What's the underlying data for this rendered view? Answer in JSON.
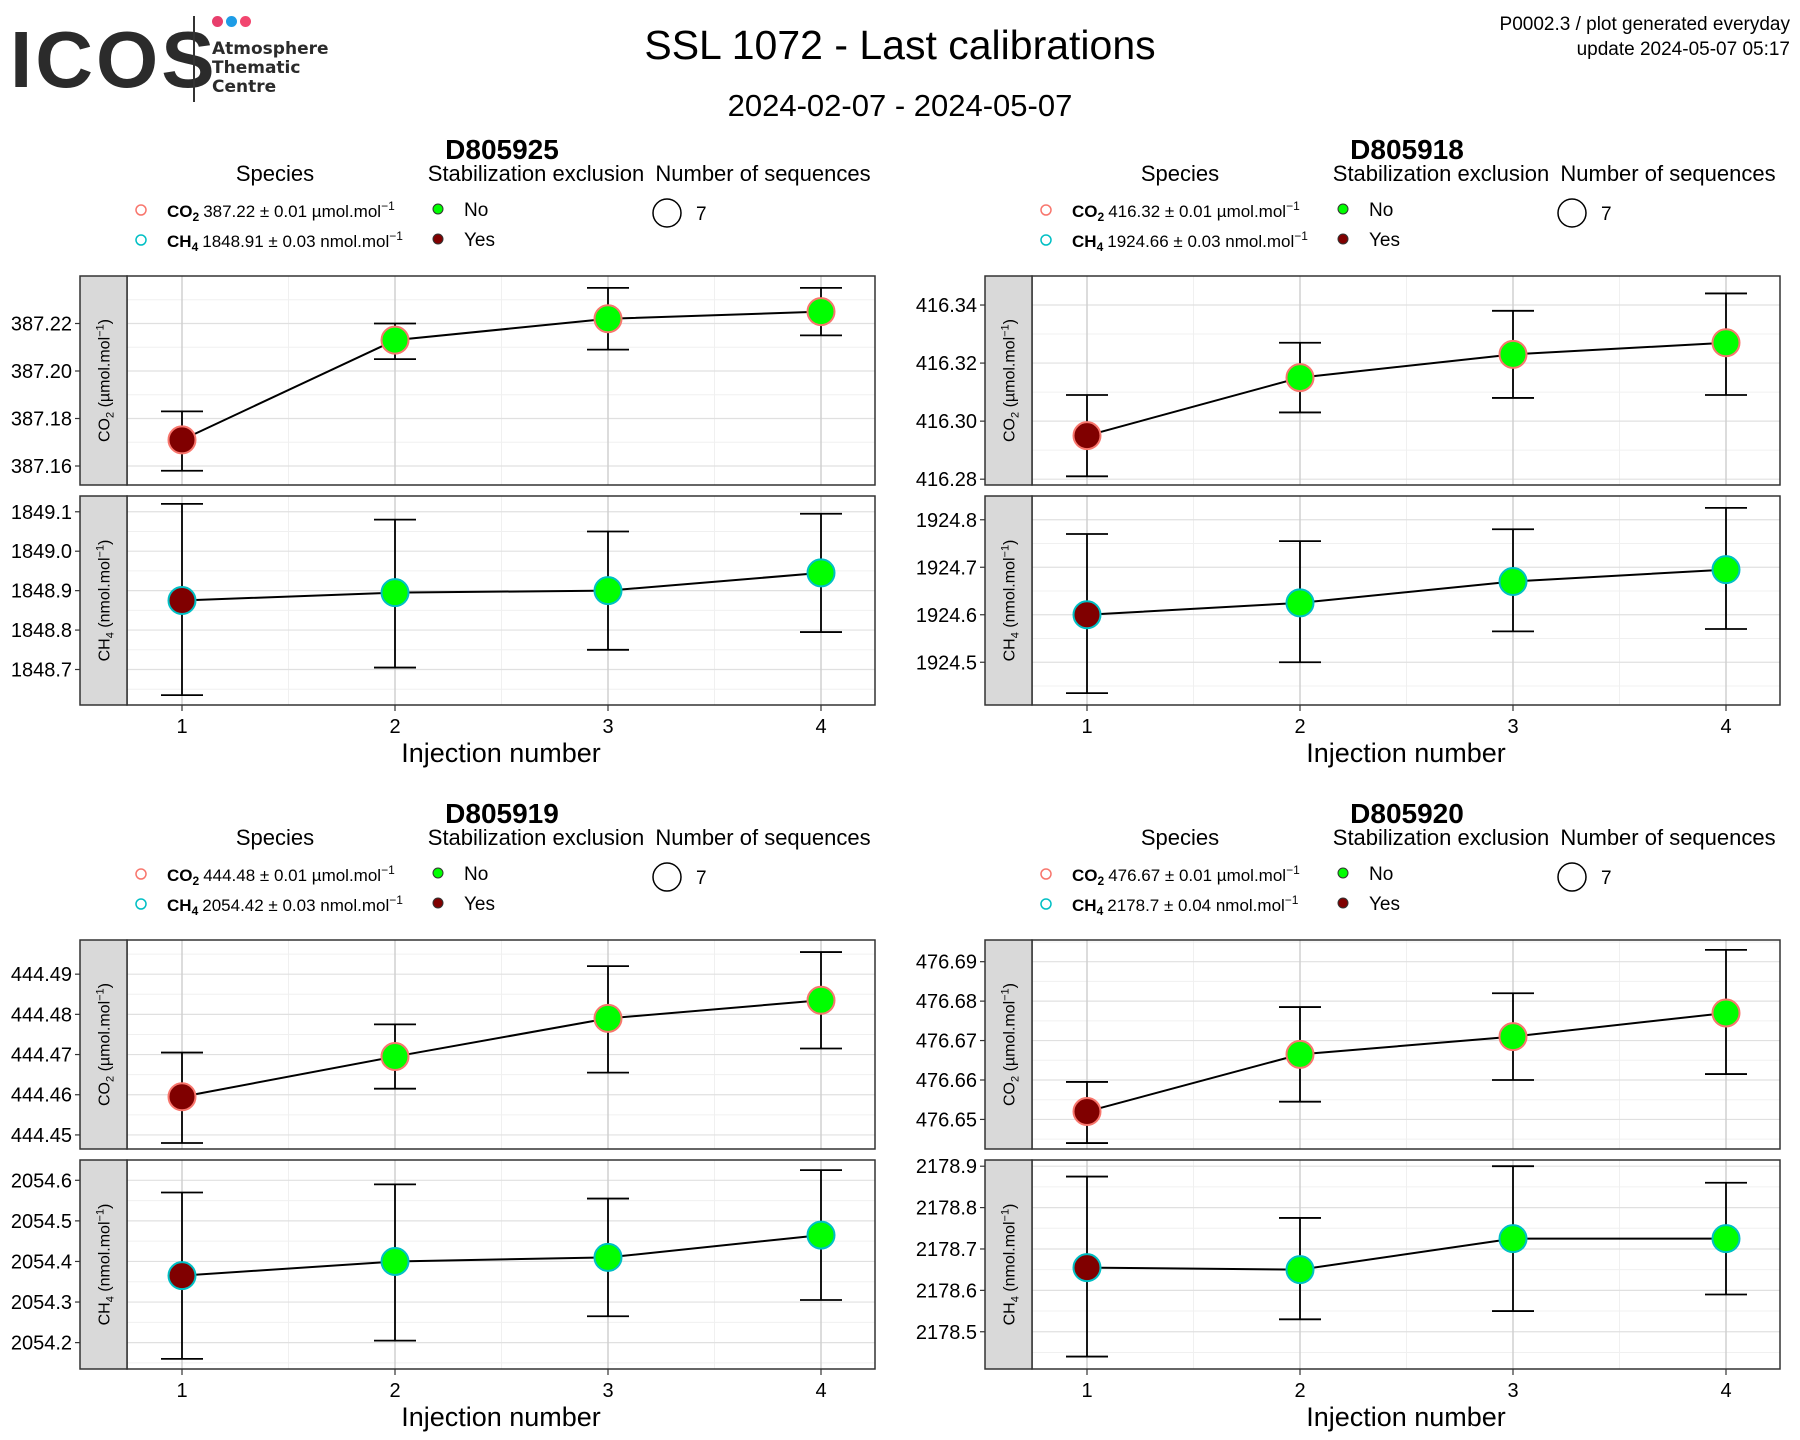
{
  "header": {
    "logo_name": "ICOS",
    "logo_lines": [
      "Atmosphere",
      "Thematic",
      "Centre"
    ],
    "logo_dot_colors": [
      "#e83e6c",
      "#1d9ce6",
      "#f2466f"
    ],
    "title": "SSL 1072 - Last calibrations",
    "date_range": "2024-02-07 - 2024-05-07",
    "corner_line1": "P0002.3 / plot generated everyday",
    "corner_line2": "update  2024-05-07 05:17"
  },
  "legend_titles": {
    "species": "Species",
    "stabilization": "Stabilization exclusion",
    "sequences": "Number of sequences",
    "no": "No",
    "yes": "Yes",
    "sequences_value": "7"
  },
  "colors": {
    "co2_legend": "#f8766d",
    "ch4_legend": "#00bfc4",
    "no_fill": "#00ff00",
    "yes_fill": "#800000",
    "strip": "#d9d9d9"
  },
  "chart_data": [
    {
      "type": "scatter",
      "title": "D805925",
      "xlabel": "Injection number",
      "x": [
        1,
        2,
        3,
        4
      ],
      "co2": {
        "legend_label": "CO",
        "legend_value": "387.22 ± 0.01 µmol.mol",
        "ylabel": "CO (µmol.mol)",
        "values": [
          387.171,
          387.213,
          387.222,
          387.225
        ],
        "err_low": [
          387.158,
          387.205,
          387.209,
          387.215
        ],
        "err_high": [
          387.183,
          387.22,
          387.235,
          387.235
        ],
        "excluded": [
          true,
          false,
          false,
          false
        ],
        "ylim": [
          387.152,
          387.24
        ],
        "ticks": [
          387.16,
          387.18,
          387.2,
          387.22
        ],
        "tick_labels": [
          "387.16",
          "387.18",
          "387.20",
          "387.22"
        ]
      },
      "ch4": {
        "legend_label": "CH",
        "legend_value": "1848.91 ± 0.03 nmol.mol",
        "ylabel": "CH (nmol.mol)",
        "values": [
          1848.875,
          1848.895,
          1848.9,
          1848.945
        ],
        "err_low": [
          1848.635,
          1848.705,
          1848.75,
          1848.795
        ],
        "err_high": [
          1849.12,
          1849.08,
          1849.05,
          1849.095
        ],
        "excluded": [
          true,
          false,
          false,
          false
        ],
        "ylim": [
          1848.61,
          1849.14
        ],
        "ticks": [
          1848.7,
          1848.8,
          1848.9,
          1849.0,
          1849.1
        ],
        "tick_labels": [
          "1848.7",
          "1848.8",
          "1848.9",
          "1849.0",
          "1849.1"
        ]
      }
    },
    {
      "type": "scatter",
      "title": "D805918",
      "xlabel": "Injection number",
      "x": [
        1,
        2,
        3,
        4
      ],
      "co2": {
        "legend_label": "CO",
        "legend_value": "416.32 ± 0.01 µmol.mol",
        "ylabel": "CO (µmol.mol)",
        "values": [
          416.295,
          416.315,
          416.323,
          416.327
        ],
        "err_low": [
          416.281,
          416.303,
          416.308,
          416.309
        ],
        "err_high": [
          416.309,
          416.327,
          416.338,
          416.344
        ],
        "excluded": [
          true,
          false,
          false,
          false
        ],
        "ylim": [
          416.278,
          416.35
        ],
        "ticks": [
          416.28,
          416.3,
          416.32,
          416.34
        ],
        "tick_labels": [
          "416.28",
          "416.30",
          "416.32",
          "416.34"
        ]
      },
      "ch4": {
        "legend_label": "CH",
        "legend_value": "1924.66 ± 0.03 nmol.mol",
        "ylabel": "CH (nmol.mol)",
        "values": [
          1924.6,
          1924.625,
          1924.67,
          1924.695
        ],
        "err_low": [
          1924.435,
          1924.5,
          1924.565,
          1924.57
        ],
        "err_high": [
          1924.77,
          1924.755,
          1924.78,
          1924.825
        ],
        "excluded": [
          true,
          false,
          false,
          false
        ],
        "ylim": [
          1924.41,
          1924.85
        ],
        "ticks": [
          1924.5,
          1924.6,
          1924.7,
          1924.8
        ],
        "tick_labels": [
          "1924.5",
          "1924.6",
          "1924.7",
          "1924.8"
        ]
      }
    },
    {
      "type": "scatter",
      "title": "D805919",
      "xlabel": "Injection number",
      "x": [
        1,
        2,
        3,
        4
      ],
      "co2": {
        "legend_label": "CO",
        "legend_value": "444.48 ± 0.01 µmol.mol",
        "ylabel": "CO (µmol.mol)",
        "values": [
          444.4595,
          444.4695,
          444.479,
          444.4835
        ],
        "err_low": [
          444.448,
          444.4615,
          444.4655,
          444.4715
        ],
        "err_high": [
          444.4705,
          444.4775,
          444.492,
          444.4955
        ],
        "excluded": [
          true,
          false,
          false,
          false
        ],
        "ylim": [
          444.4465,
          444.4985
        ],
        "ticks": [
          444.45,
          444.46,
          444.47,
          444.48,
          444.49
        ],
        "tick_labels": [
          "444.45",
          "444.46",
          "444.47",
          "444.48",
          "444.49"
        ]
      },
      "ch4": {
        "legend_label": "CH",
        "legend_value": "2054.42 ± 0.03 nmol.mol",
        "ylabel": "CH (nmol.mol)",
        "values": [
          2054.365,
          2054.4,
          2054.41,
          2054.465
        ],
        "err_low": [
          2054.16,
          2054.205,
          2054.265,
          2054.305
        ],
        "err_high": [
          2054.57,
          2054.59,
          2054.555,
          2054.625
        ],
        "excluded": [
          true,
          false,
          false,
          false
        ],
        "ylim": [
          2054.135,
          2054.65
        ],
        "ticks": [
          2054.2,
          2054.3,
          2054.4,
          2054.5,
          2054.6
        ],
        "tick_labels": [
          "2054.2",
          "2054.3",
          "2054.4",
          "2054.5",
          "2054.6"
        ]
      }
    },
    {
      "type": "scatter",
      "title": "D805920",
      "xlabel": "Injection number",
      "x": [
        1,
        2,
        3,
        4
      ],
      "co2": {
        "legend_label": "CO",
        "legend_value": "476.67 ± 0.01 µmol.mol",
        "ylabel": "CO (µmol.mol)",
        "values": [
          476.652,
          476.6665,
          476.671,
          476.677
        ],
        "err_low": [
          476.644,
          476.6545,
          476.66,
          476.6615
        ],
        "err_high": [
          476.6595,
          476.6785,
          476.682,
          476.693
        ],
        "excluded": [
          true,
          false,
          false,
          false
        ],
        "ylim": [
          476.6425,
          476.6955
        ],
        "ticks": [
          476.65,
          476.66,
          476.67,
          476.68,
          476.69
        ],
        "tick_labels": [
          "476.65",
          "476.66",
          "476.67",
          "476.68",
          "476.69"
        ]
      },
      "ch4": {
        "legend_label": "CH",
        "legend_value": "2178.7 ± 0.04 nmol.mol",
        "ylabel": "CH (nmol.mol)",
        "values": [
          2178.655,
          2178.65,
          2178.725,
          2178.725
        ],
        "err_low": [
          2178.44,
          2178.53,
          2178.55,
          2178.59
        ],
        "err_high": [
          2178.875,
          2178.775,
          2178.9,
          2178.86
        ],
        "excluded": [
          true,
          false,
          false,
          false
        ],
        "ylim": [
          2178.41,
          2178.915
        ],
        "ticks": [
          2178.5,
          2178.6,
          2178.7,
          2178.8,
          2178.9
        ],
        "tick_labels": [
          "2178.5",
          "2178.6",
          "2178.7",
          "2178.8",
          "2178.9"
        ]
      }
    }
  ]
}
